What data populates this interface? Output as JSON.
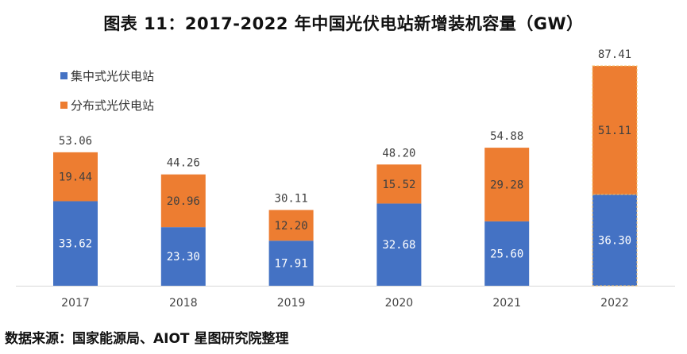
{
  "chart_data": {
    "type": "bar",
    "stacked": true,
    "title": "图表 11：2017-2022 年中国光伏电站新增装机容量（GW）",
    "categories": [
      "2017",
      "2018",
      "2019",
      "2020",
      "2021",
      "2022"
    ],
    "series": [
      {
        "name": "集中式光伏电站",
        "color": "#4472C4",
        "values": [
          33.62,
          23.3,
          17.91,
          32.68,
          25.6,
          36.3
        ]
      },
      {
        "name": "分布式光伏电站",
        "color": "#ED7D31",
        "values": [
          19.44,
          20.96,
          12.2,
          15.52,
          29.28,
          51.11
        ]
      }
    ],
    "totals": [
      53.06,
      44.26,
      30.11,
      48.2,
      54.88,
      87.41
    ],
    "xlabel": "",
    "ylabel": "",
    "ylim": [
      0,
      87.41
    ],
    "grid": false,
    "legend": "top-left"
  },
  "source": "数据来源：国家能源局、AIOT 星图研究院整理"
}
